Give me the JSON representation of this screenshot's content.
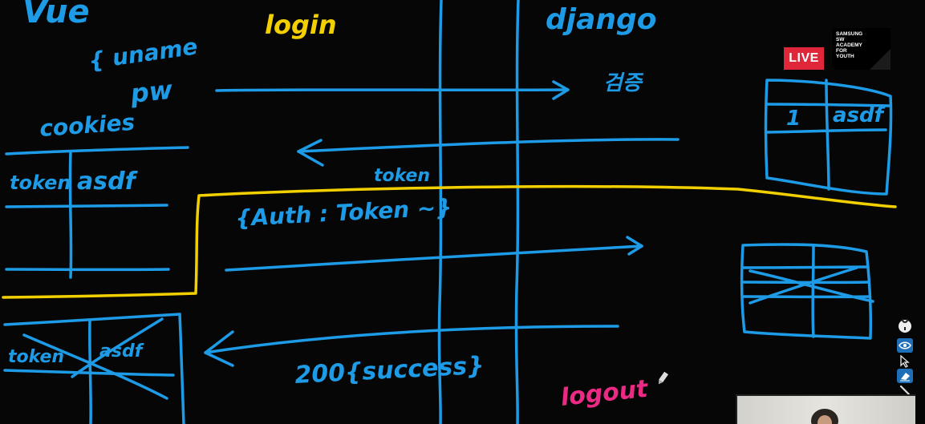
{
  "board": {
    "labels": {
      "vue": "Vue",
      "login": "login",
      "django": "django",
      "uname": "{ uname",
      "pw": "pw",
      "verify": "검증",
      "cookies": "cookies",
      "cookie_key": "token",
      "cookie_value": "asdf",
      "db_id": "1",
      "db_value": "asdf",
      "token": "token",
      "auth_header": "{Auth : Token ~}",
      "crossed_key": "token",
      "crossed_value": "asdf",
      "response": "200{success}",
      "logout": "logout"
    },
    "colors": {
      "board": "#060606",
      "pen_blue": "#1e9be6",
      "pen_yellow": "#f2d000",
      "pen_pink": "#ec2a86"
    }
  },
  "stream": {
    "live_badge": "LIVE",
    "logo_lines": [
      "SAMSUNG",
      "SW",
      "ACADEMY",
      "FOR",
      "YOUTH"
    ]
  },
  "toolbar": {
    "tools": [
      "pin-icon",
      "eye-icon",
      "pointer-icon",
      "eraser-icon",
      "pen-icon"
    ]
  }
}
